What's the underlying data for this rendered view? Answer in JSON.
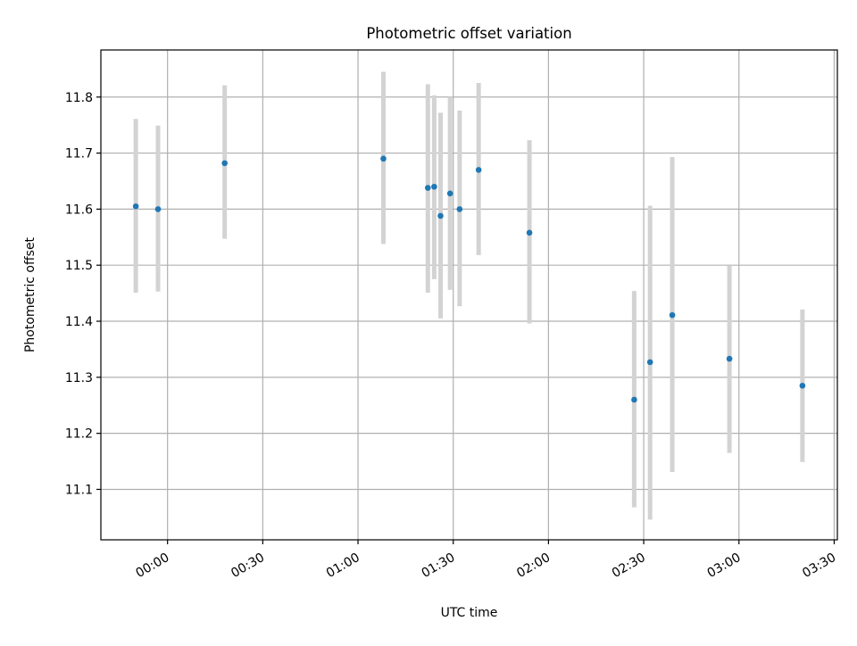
{
  "chart_data": {
    "type": "scatter",
    "title": "Photometric offset variation",
    "xlabel": "UTC time",
    "ylabel": "Photometric offset",
    "x_tick_labels": [
      "00:00",
      "00:30",
      "01:00",
      "01:30",
      "02:00",
      "02:30",
      "03:00",
      "03:30"
    ],
    "y_tick_labels": [
      "11.1",
      "11.2",
      "11.3",
      "11.4",
      "11.5",
      "11.6",
      "11.7",
      "11.8"
    ],
    "xlim": [
      "-00:21",
      "03:31"
    ],
    "ylim": [
      11.01,
      11.884
    ],
    "grid": true,
    "colors": {
      "marker": "#1f77b4",
      "errorbar": "#d3d3d3",
      "grid": "#b0b0b0"
    },
    "series": [
      {
        "x": [
          "-00:10",
          "-00:03",
          "00:18",
          "01:08",
          "01:22",
          "01:24",
          "01:26",
          "01:29",
          "01:32",
          "01:38",
          "01:54",
          "02:27",
          "02:32",
          "02:39",
          "02:57",
          "03:20"
        ],
        "y": [
          11.605,
          11.6,
          11.682,
          11.69,
          11.638,
          11.64,
          11.588,
          11.628,
          11.6,
          11.67,
          11.558,
          11.26,
          11.327,
          11.411,
          11.333,
          11.285
        ],
        "y_low": [
          11.451,
          11.453,
          11.547,
          11.538,
          11.451,
          11.475,
          11.405,
          11.456,
          11.427,
          11.518,
          11.396,
          11.068,
          11.046,
          11.131,
          11.165,
          11.149
        ],
        "y_high": [
          11.761,
          11.749,
          11.821,
          11.845,
          11.823,
          11.803,
          11.772,
          11.8,
          11.776,
          11.825,
          11.723,
          11.454,
          11.606,
          11.693,
          11.499,
          11.421
        ]
      }
    ]
  }
}
